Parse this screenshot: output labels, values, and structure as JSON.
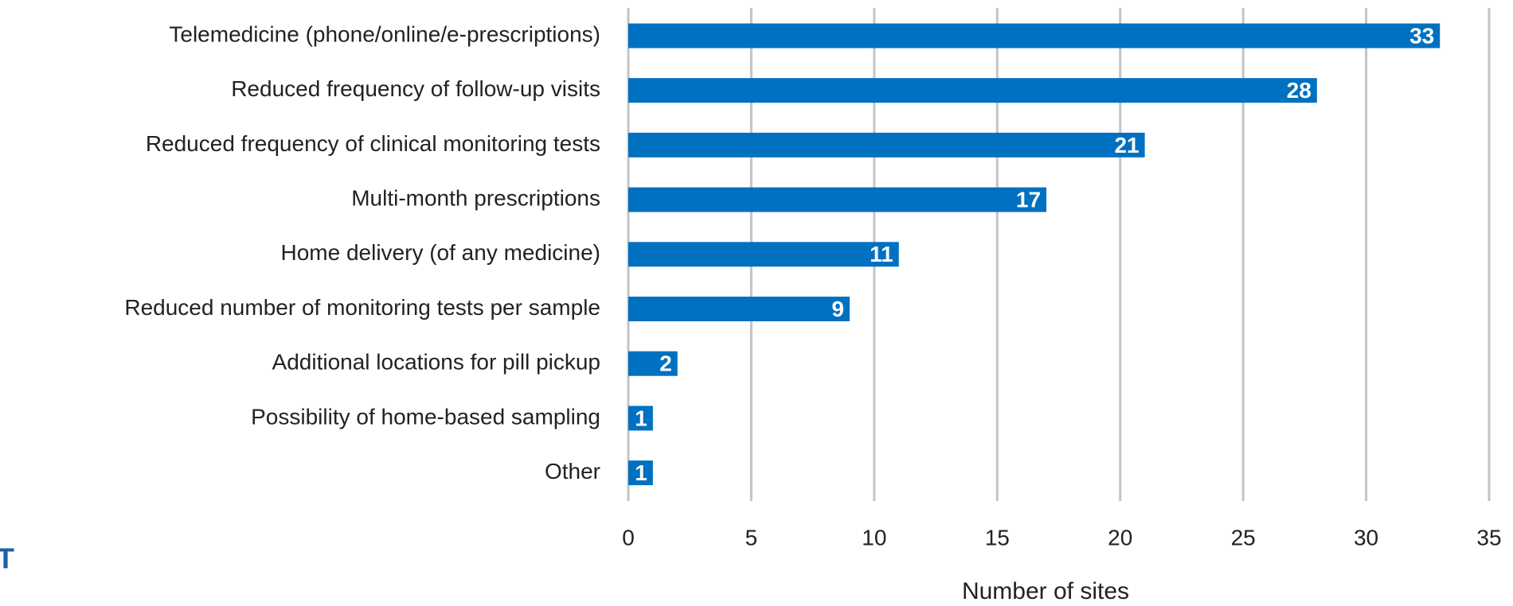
{
  "chart_data": {
    "type": "bar",
    "orientation": "horizontal",
    "categories": [
      "Telemedicine (phone/online/e-prescriptions)",
      "Reduced frequency of follow-up visits",
      "Reduced frequency of clinical monitoring tests",
      "Multi-month prescriptions",
      "Home delivery (of any medicine)",
      "Reduced number of monitoring tests per sample",
      "Additional locations for pill pickup",
      "Possibility of home-based sampling",
      "Other"
    ],
    "values": [
      33,
      28,
      21,
      17,
      11,
      9,
      2,
      1,
      1
    ],
    "color": "#0070c0",
    "xlim": [
      0,
      35
    ],
    "xticks": [
      0,
      5,
      10,
      15,
      20,
      25,
      30,
      35
    ],
    "x_label": "Number of sites",
    "grid": true,
    "data_labels": true
  },
  "logo_text": "T"
}
